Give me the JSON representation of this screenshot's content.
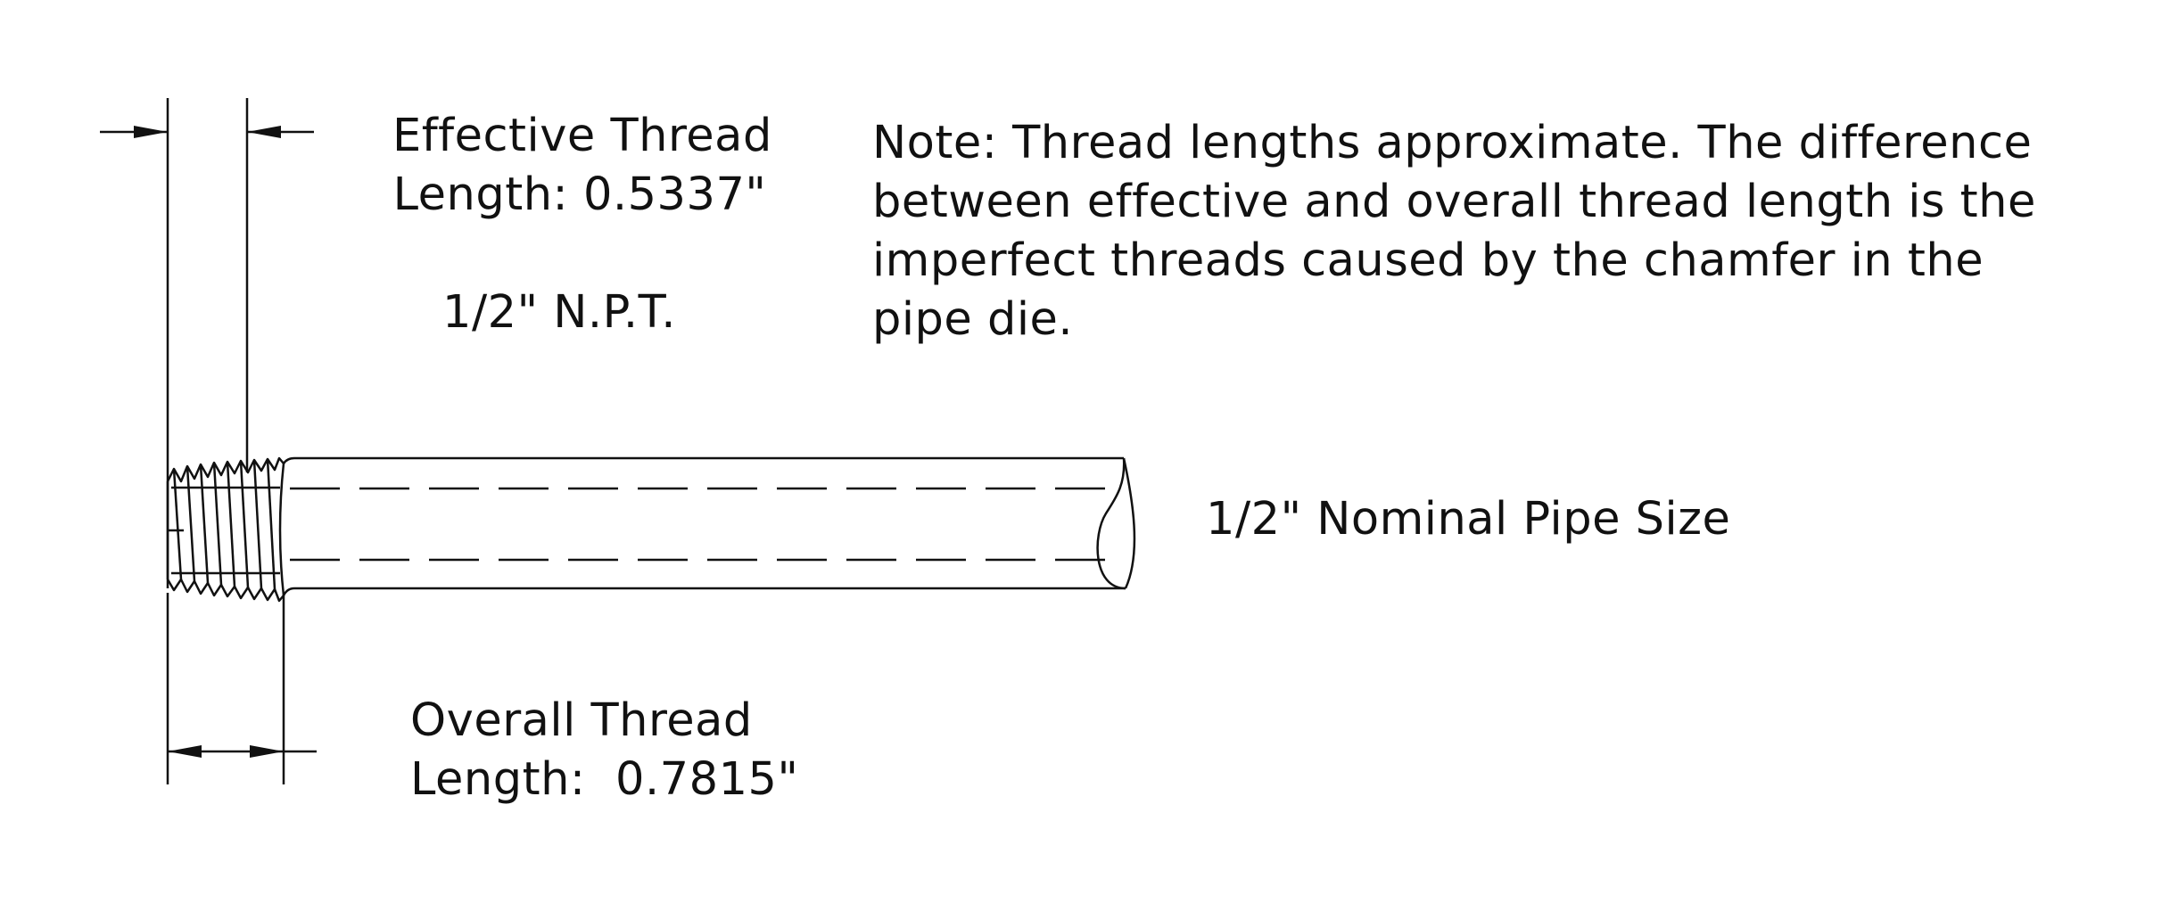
{
  "labels": {
    "effective_line1": "Effective Thread",
    "effective_line2": "Length: 0.5337\"",
    "npt": "1/2\" N.P.T.",
    "note": "Note: Thread lengths approximate. The difference between effective and overall thread length is the imperfect threads caused by the chamfer in the pipe die.",
    "nominal": "1/2\" Nominal Pipe Size",
    "overall_line1": "Overall Thread",
    "overall_line2": "Length:  0.7815\""
  },
  "colors": {
    "line": "#111111",
    "background": "#ffffff"
  }
}
